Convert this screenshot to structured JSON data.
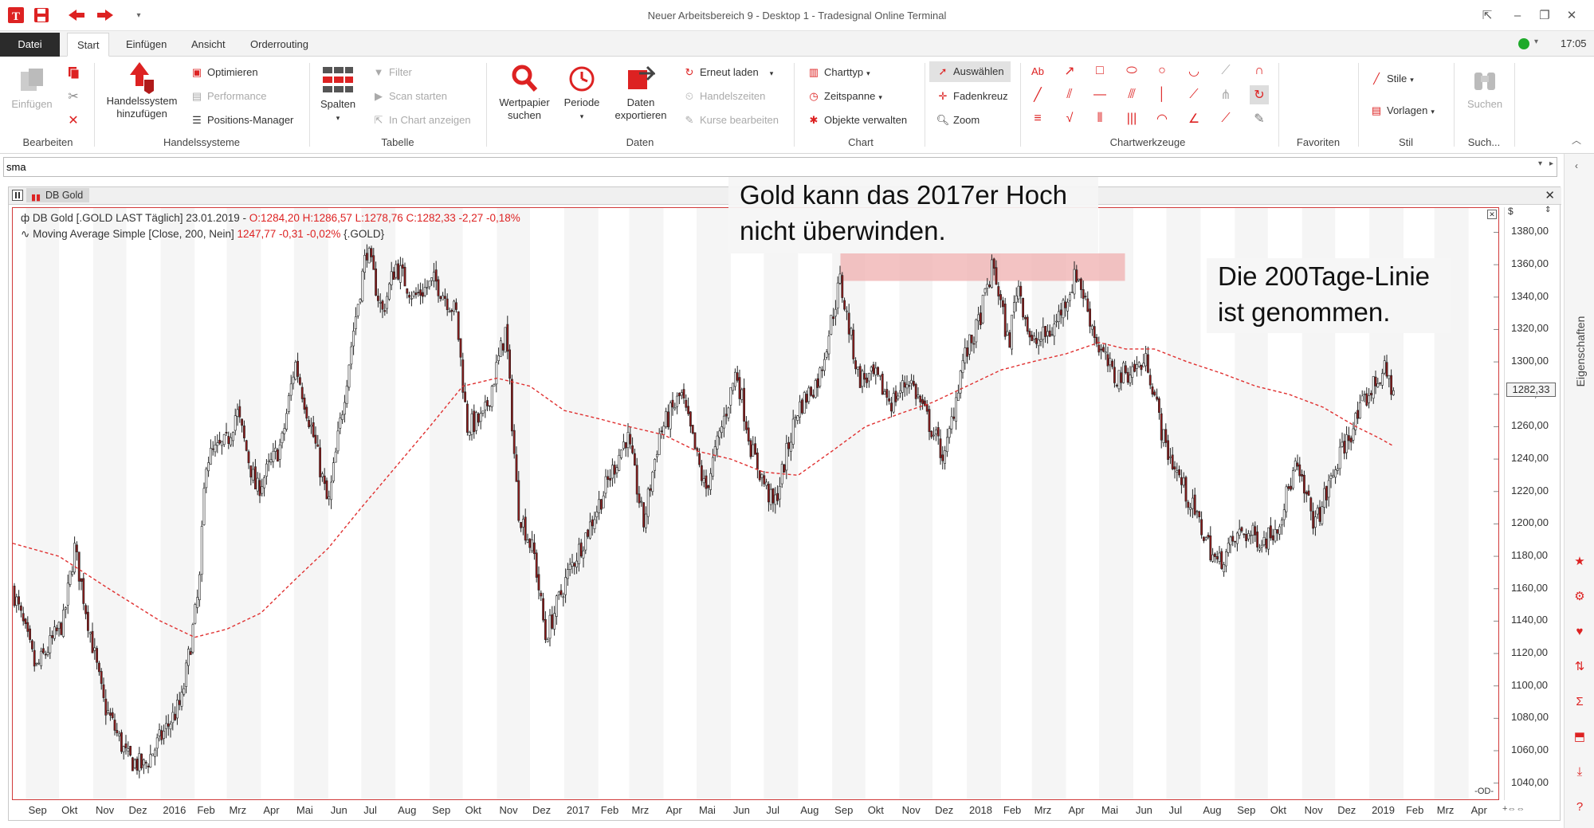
{
  "window": {
    "title": "Neuer Arbeitsbereich 9 - Desktop 1 - Tradesignal Online Terminal",
    "time": "17:05"
  },
  "menu": {
    "tabs": [
      "Datei",
      "Start",
      "Einfügen",
      "Ansicht",
      "Orderrouting"
    ]
  },
  "ribbon": {
    "groups": [
      "Bearbeiten",
      "Handelssysteme",
      "Tabelle",
      "Daten",
      "Chart",
      "Chartwerkzeuge",
      "Favoriten",
      "Stil",
      "Such..."
    ],
    "einfuegen": "Einfügen",
    "handelssystem": [
      "Handelssystem",
      "hinzufügen"
    ],
    "optimieren": "Optimieren",
    "performance": "Performance",
    "positions_manager": "Positions-Manager",
    "spalten": "Spalten",
    "filter": "Filter",
    "scan_starten": "Scan starten",
    "in_chart_anzeigen": "In Chart anzeigen",
    "wertpapier": [
      "Wertpapier",
      "suchen"
    ],
    "periode": "Periode",
    "daten_exportieren": [
      "Daten",
      "exportieren"
    ],
    "erneut_laden": "Erneut laden",
    "handelszeiten": "Handelszeiten",
    "kurse_bearbeiten": "Kurse bearbeiten",
    "charttyp": "Charttyp",
    "zeitspanne": "Zeitspanne",
    "objekte_verwalten": "Objekte verwalten",
    "auswaehlen": "Auswählen",
    "fadenkreuz": "Fadenkreuz",
    "zoom": "Zoom",
    "stile": "Stile",
    "vorlagen": "Vorlagen",
    "suchen": "Suchen"
  },
  "command": {
    "value": "sma"
  },
  "chart_window": {
    "tab": "DB Gold",
    "side_label": "Eigenschaften",
    "currency": "$"
  },
  "legend": {
    "line1_name": "DB Gold [.GOLD LAST Täglich] 23.01.2019 -",
    "line1_values": "O:1284,20 H:1286,57 L:1278,76 C:1282,33 -2,27 -0,18%",
    "line2_name": "Moving Average Simple [Close, 200, Nein]",
    "line2_values": "1247,77 -0,31 -0,02%",
    "line2_sym": "{.GOLD}"
  },
  "annotations": {
    "note1": [
      "Gold kann das 2017er Hoch",
      "nicht überwinden."
    ],
    "note2": [
      "Die 200Tage-Linie",
      "ist genommen."
    ]
  },
  "last_price_label": "1282,33",
  "colors": {
    "accent": "#d22222",
    "candle_up": "#ffffff",
    "candle_down": "#8b1a1a",
    "ma": "#e03030",
    "band": "#f0b4b4"
  },
  "chart_data": {
    "type": "candlestick",
    "y_ticks": [
      "1040,00",
      "1060,00",
      "1080,00",
      "1100,00",
      "1120,00",
      "1140,00",
      "1160,00",
      "1180,00",
      "1200,00",
      "1220,00",
      "1240,00",
      "1260,00",
      "1280,00",
      "1300,00",
      "1320,00",
      "1340,00",
      "1360,00",
      "1380,00"
    ],
    "x_ticks": [
      "Sep",
      "Okt",
      "Nov",
      "Dez",
      "2016",
      "Feb",
      "Mrz",
      "Apr",
      "Mai",
      "Jun",
      "Jul",
      "Aug",
      "Sep",
      "Okt",
      "Nov",
      "Dez",
      "2017",
      "Feb",
      "Mrz",
      "Apr",
      "Mai",
      "Jun",
      "Jul",
      "Aug",
      "Sep",
      "Okt",
      "Nov",
      "Dez",
      "2018",
      "Feb",
      "Mrz",
      "Apr",
      "Mai",
      "Jun",
      "Jul",
      "Aug",
      "Sep",
      "Okt",
      "Nov",
      "Dez",
      "2019",
      "Feb",
      "Mrz",
      "Apr"
    ],
    "ylim": [
      1030,
      1395
    ],
    "x_months": [
      "2015-09",
      "2015-10",
      "2015-11",
      "2015-12",
      "2016-01",
      "2016-02",
      "2016-03",
      "2016-04",
      "2016-05",
      "2016-06",
      "2016-07",
      "2016-08",
      "2016-09",
      "2016-10",
      "2016-11",
      "2016-12",
      "2017-01",
      "2017-02",
      "2017-03",
      "2017-04",
      "2017-05",
      "2017-06",
      "2017-07",
      "2017-08",
      "2017-09",
      "2017-10",
      "2017-11",
      "2017-12",
      "2018-01",
      "2018-02",
      "2018-03",
      "2018-04",
      "2018-05",
      "2018-06",
      "2018-07",
      "2018-08",
      "2018-09",
      "2018-10",
      "2018-11",
      "2018-12",
      "2019-01",
      "2019-02",
      "2019-03",
      "2019-04"
    ],
    "close_path": [
      [
        "2015-08-20",
        1160
      ],
      [
        "2015-09-10",
        1110
      ],
      [
        "2015-10-05",
        1140
      ],
      [
        "2015-10-15",
        1185
      ],
      [
        "2015-11-10",
        1090
      ],
      [
        "2015-12-02",
        1055
      ],
      [
        "2015-12-17",
        1050
      ],
      [
        "2016-01-20",
        1090
      ],
      [
        "2016-02-05",
        1160
      ],
      [
        "2016-02-11",
        1240
      ],
      [
        "2016-03-01",
        1250
      ],
      [
        "2016-03-10",
        1270
      ],
      [
        "2016-03-28",
        1220
      ],
      [
        "2016-04-20",
        1250
      ],
      [
        "2016-05-02",
        1300
      ],
      [
        "2016-05-20",
        1250
      ],
      [
        "2016-06-01",
        1210
      ],
      [
        "2016-06-24",
        1320
      ],
      [
        "2016-07-06",
        1370
      ],
      [
        "2016-07-20",
        1330
      ],
      [
        "2016-08-01",
        1360
      ],
      [
        "2016-08-18",
        1340
      ],
      [
        "2016-09-06",
        1350
      ],
      [
        "2016-09-25",
        1330
      ],
      [
        "2016-10-05",
        1260
      ],
      [
        "2016-10-20",
        1265
      ],
      [
        "2016-11-02",
        1300
      ],
      [
        "2016-11-09",
        1320
      ],
      [
        "2016-11-20",
        1210
      ],
      [
        "2016-12-05",
        1180
      ],
      [
        "2016-12-15",
        1130
      ],
      [
        "2017-01-05",
        1170
      ],
      [
        "2017-01-25",
        1200
      ],
      [
        "2017-02-27",
        1255
      ],
      [
        "2017-03-14",
        1200
      ],
      [
        "2017-03-28",
        1255
      ],
      [
        "2017-04-17",
        1280
      ],
      [
        "2017-05-09",
        1220
      ],
      [
        "2017-06-06",
        1295
      ],
      [
        "2017-06-20",
        1245
      ],
      [
        "2017-07-10",
        1210
      ],
      [
        "2017-07-31",
        1270
      ],
      [
        "2017-08-20",
        1290
      ],
      [
        "2017-09-08",
        1350
      ],
      [
        "2017-09-25",
        1290
      ],
      [
        "2017-10-10",
        1290
      ],
      [
        "2017-10-25",
        1275
      ],
      [
        "2017-11-10",
        1290
      ],
      [
        "2017-12-12",
        1240
      ],
      [
        "2017-12-28",
        1300
      ],
      [
        "2018-01-10",
        1320
      ],
      [
        "2018-01-25",
        1360
      ],
      [
        "2018-02-08",
        1310
      ],
      [
        "2018-02-16",
        1350
      ],
      [
        "2018-03-01",
        1310
      ],
      [
        "2018-03-20",
        1320
      ],
      [
        "2018-04-11",
        1355
      ],
      [
        "2018-04-30",
        1310
      ],
      [
        "2018-05-15",
        1290
      ],
      [
        "2018-06-14",
        1300
      ],
      [
        "2018-06-29",
        1250
      ],
      [
        "2018-07-18",
        1220
      ],
      [
        "2018-08-16",
        1175
      ],
      [
        "2018-09-07",
        1195
      ],
      [
        "2018-09-28",
        1190
      ],
      [
        "2018-10-10",
        1200
      ],
      [
        "2018-10-26",
        1235
      ],
      [
        "2018-11-13",
        1200
      ],
      [
        "2018-12-07",
        1245
      ],
      [
        "2018-12-31",
        1280
      ],
      [
        "2019-01-14",
        1295
      ],
      [
        "2019-01-23",
        1282
      ]
    ],
    "ma_path": [
      [
        "2015-08-20",
        1188
      ],
      [
        "2015-10-01",
        1180
      ],
      [
        "2015-11-15",
        1160
      ],
      [
        "2016-01-01",
        1140
      ],
      [
        "2016-02-01",
        1130
      ],
      [
        "2016-03-01",
        1135
      ],
      [
        "2016-04-01",
        1145
      ],
      [
        "2016-05-01",
        1165
      ],
      [
        "2016-06-01",
        1185
      ],
      [
        "2016-07-01",
        1210
      ],
      [
        "2016-08-01",
        1235
      ],
      [
        "2016-09-01",
        1260
      ],
      [
        "2016-10-01",
        1285
      ],
      [
        "2016-11-01",
        1290
      ],
      [
        "2016-12-01",
        1285
      ],
      [
        "2017-01-01",
        1270
      ],
      [
        "2017-02-01",
        1265
      ],
      [
        "2017-03-01",
        1260
      ],
      [
        "2017-04-01",
        1255
      ],
      [
        "2017-05-01",
        1245
      ],
      [
        "2017-06-01",
        1240
      ],
      [
        "2017-07-01",
        1232
      ],
      [
        "2017-08-01",
        1230
      ],
      [
        "2017-09-01",
        1245
      ],
      [
        "2017-10-01",
        1260
      ],
      [
        "2017-11-01",
        1268
      ],
      [
        "2017-12-01",
        1275
      ],
      [
        "2018-01-01",
        1285
      ],
      [
        "2018-02-01",
        1295
      ],
      [
        "2018-03-01",
        1300
      ],
      [
        "2018-04-01",
        1305
      ],
      [
        "2018-05-01",
        1312
      ],
      [
        "2018-05-25",
        1308
      ],
      [
        "2018-06-20",
        1308
      ],
      [
        "2018-07-20",
        1300
      ],
      [
        "2018-08-20",
        1293
      ],
      [
        "2018-09-20",
        1285
      ],
      [
        "2018-10-20",
        1280
      ],
      [
        "2018-11-20",
        1272
      ],
      [
        "2018-12-20",
        1260
      ],
      [
        "2019-01-10",
        1253
      ],
      [
        "2019-01-23",
        1248
      ]
    ],
    "resistance_band": {
      "from": "2017-08-25",
      "to": "2018-05-10",
      "low": 1350,
      "high": 1367
    }
  }
}
